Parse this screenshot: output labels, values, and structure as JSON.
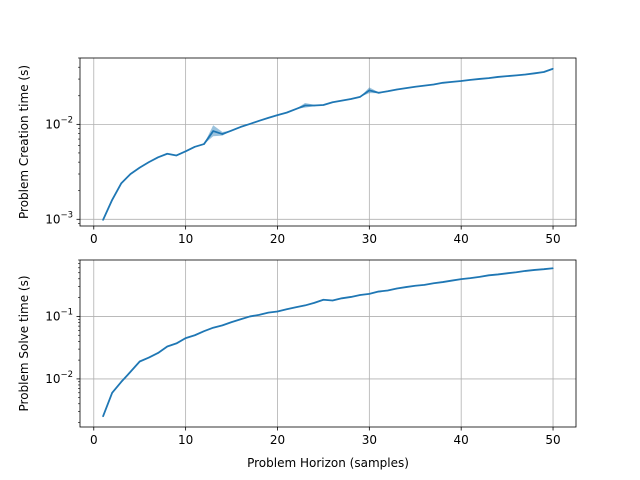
{
  "colors": {
    "line": "#1f77b4",
    "band": "#1f77b4",
    "grid": "#b0b0b0",
    "axes": "#000000"
  },
  "chart_data": [
    {
      "type": "line",
      "xlabel": "",
      "ylabel": "Problem Creation time (s)",
      "yscale": "log",
      "xlim": [
        -1.5,
        52.5
      ],
      "ylim": [
        0.00085,
        0.05
      ],
      "grid": true,
      "xticks": [
        0,
        10,
        20,
        30,
        40,
        50
      ],
      "yticks": [
        {
          "value": 0.001,
          "base": "10",
          "exp": "−3"
        },
        {
          "value": 0.01,
          "base": "10",
          "exp": "−2"
        }
      ],
      "x": [
        1,
        2,
        3,
        4,
        5,
        6,
        7,
        8,
        9,
        10,
        11,
        12,
        13,
        14,
        15,
        16,
        17,
        18,
        19,
        20,
        21,
        22,
        23,
        24,
        25,
        26,
        27,
        28,
        29,
        30,
        31,
        32,
        33,
        34,
        35,
        36,
        37,
        38,
        39,
        40,
        41,
        42,
        43,
        44,
        45,
        46,
        47,
        48,
        49,
        50
      ],
      "y": [
        0.00098,
        0.0016,
        0.0024,
        0.003,
        0.0035,
        0.004,
        0.0045,
        0.0049,
        0.0047,
        0.0052,
        0.0058,
        0.0062,
        0.0085,
        0.0079,
        0.0086,
        0.0094,
        0.0101,
        0.0109,
        0.0117,
        0.0125,
        0.0133,
        0.0145,
        0.0158,
        0.0158,
        0.016,
        0.0171,
        0.0178,
        0.0185,
        0.0195,
        0.0228,
        0.0215,
        0.0223,
        0.0233,
        0.0241,
        0.0249,
        0.0256,
        0.0263,
        0.0274,
        0.028,
        0.0286,
        0.0294,
        0.0301,
        0.0307,
        0.0316,
        0.0322,
        0.0328,
        0.0335,
        0.0345,
        0.0356,
        0.0385
      ],
      "band_low": [
        0.00098,
        0.0016,
        0.0024,
        0.003,
        0.0035,
        0.004,
        0.0045,
        0.0049,
        0.0047,
        0.0052,
        0.0058,
        0.0062,
        0.0075,
        0.0076,
        0.0086,
        0.0094,
        0.0101,
        0.0109,
        0.0117,
        0.0125,
        0.0133,
        0.0145,
        0.015,
        0.0155,
        0.016,
        0.0171,
        0.0178,
        0.0185,
        0.0195,
        0.0213,
        0.0213,
        0.0223,
        0.0233,
        0.0241,
        0.0249,
        0.0256,
        0.0263,
        0.0274,
        0.028,
        0.0286,
        0.0294,
        0.0301,
        0.0307,
        0.0316,
        0.0322,
        0.0328,
        0.0335,
        0.0345,
        0.0356,
        0.0385
      ],
      "band_high": [
        0.00098,
        0.0016,
        0.0024,
        0.003,
        0.0035,
        0.004,
        0.0045,
        0.0049,
        0.0047,
        0.0052,
        0.0058,
        0.0062,
        0.0098,
        0.0083,
        0.0086,
        0.0094,
        0.0101,
        0.0109,
        0.0117,
        0.0125,
        0.0133,
        0.0145,
        0.0168,
        0.0161,
        0.016,
        0.0171,
        0.0178,
        0.0185,
        0.0195,
        0.0245,
        0.0218,
        0.0223,
        0.0233,
        0.0241,
        0.0249,
        0.0256,
        0.0263,
        0.0274,
        0.028,
        0.0286,
        0.0294,
        0.0301,
        0.0307,
        0.0316,
        0.0322,
        0.0328,
        0.0335,
        0.0345,
        0.0356,
        0.0385
      ]
    },
    {
      "type": "line",
      "xlabel": "Problem Horizon (samples)",
      "ylabel": "Problem Solve time (s)",
      "yscale": "log",
      "xlim": [
        -1.5,
        52.5
      ],
      "ylim": [
        0.0017,
        0.8
      ],
      "grid": true,
      "xticks": [
        0,
        10,
        20,
        30,
        40,
        50
      ],
      "yticks": [
        {
          "value": 0.01,
          "base": "10",
          "exp": "−2"
        },
        {
          "value": 0.1,
          "base": "10",
          "exp": "−1"
        }
      ],
      "x": [
        1,
        2,
        3,
        4,
        5,
        6,
        7,
        8,
        9,
        10,
        11,
        12,
        13,
        14,
        15,
        16,
        17,
        18,
        19,
        20,
        21,
        22,
        23,
        24,
        25,
        26,
        27,
        28,
        29,
        30,
        31,
        32,
        33,
        34,
        35,
        36,
        37,
        38,
        39,
        40,
        41,
        42,
        43,
        44,
        45,
        46,
        47,
        48,
        49,
        50
      ],
      "y": [
        0.0025,
        0.006,
        0.009,
        0.013,
        0.019,
        0.022,
        0.026,
        0.033,
        0.037,
        0.045,
        0.05,
        0.058,
        0.066,
        0.072,
        0.081,
        0.09,
        0.1,
        0.106,
        0.115,
        0.12,
        0.13,
        0.14,
        0.15,
        0.165,
        0.185,
        0.18,
        0.195,
        0.205,
        0.22,
        0.23,
        0.25,
        0.26,
        0.28,
        0.295,
        0.31,
        0.32,
        0.34,
        0.355,
        0.375,
        0.395,
        0.41,
        0.43,
        0.455,
        0.47,
        0.49,
        0.51,
        0.535,
        0.555,
        0.57,
        0.59
      ]
    }
  ]
}
